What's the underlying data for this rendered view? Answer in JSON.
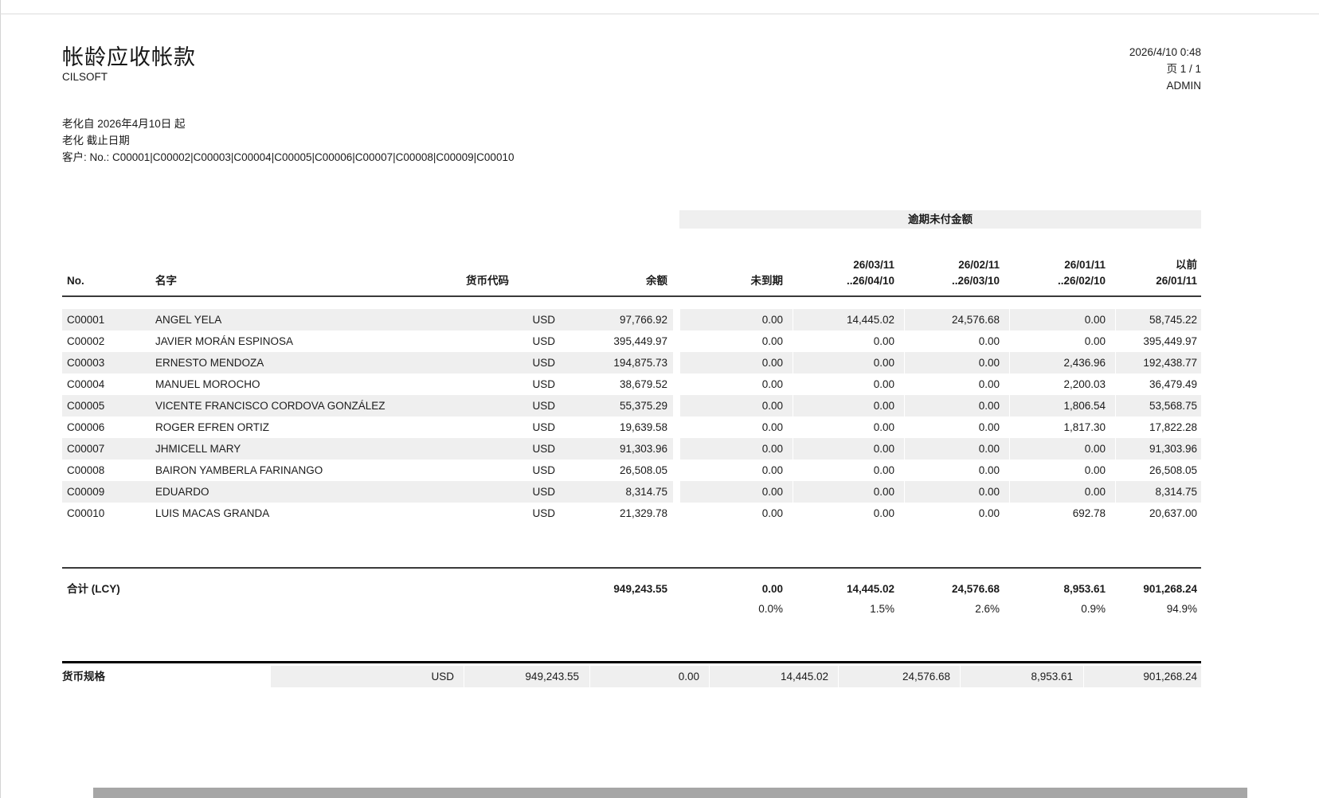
{
  "header": {
    "title": "帐龄应收帐款",
    "company": "CILSOFT",
    "datetime": "2026/4/10 0:48",
    "page_label": "页 1 / 1",
    "user": "ADMIN"
  },
  "filters": {
    "aging_from": "老化自 2026年4月10日 起",
    "aging_basis": "老化 截止日期",
    "customer_filter": "客户: No.: C00001|C00002|C00003|C00004|C00005|C00006|C00007|C00008|C00009|C00010"
  },
  "table": {
    "overdue_band": "逾期未付金额",
    "headers": {
      "no": "No.",
      "name": "名字",
      "currency": "货币代码",
      "balance": "余额",
      "not_due": "未到期",
      "b1_line1": "26/03/11",
      "b1_line2": "..26/04/10",
      "b2_line1": "26/02/11",
      "b2_line2": "..26/03/10",
      "b3_line1": "26/01/11",
      "b3_line2": "..26/02/10",
      "bf_line1": "以前",
      "bf_line2": "26/01/11"
    },
    "rows": [
      {
        "no": "C00001",
        "name": "ANGEL YELA",
        "currency": "USD",
        "balance": "97,766.92",
        "not_due": "0.00",
        "b1": "14,445.02",
        "b2": "24,576.68",
        "b3": "0.00",
        "before": "58,745.22"
      },
      {
        "no": "C00002",
        "name": "JAVIER MORÁN ESPINOSA",
        "currency": "USD",
        "balance": "395,449.97",
        "not_due": "0.00",
        "b1": "0.00",
        "b2": "0.00",
        "b3": "0.00",
        "before": "395,449.97"
      },
      {
        "no": "C00003",
        "name": "ERNESTO MENDOZA",
        "currency": "USD",
        "balance": "194,875.73",
        "not_due": "0.00",
        "b1": "0.00",
        "b2": "0.00",
        "b3": "2,436.96",
        "before": "192,438.77"
      },
      {
        "no": "C00004",
        "name": "MANUEL MOROCHO",
        "currency": "USD",
        "balance": "38,679.52",
        "not_due": "0.00",
        "b1": "0.00",
        "b2": "0.00",
        "b3": "2,200.03",
        "before": "36,479.49"
      },
      {
        "no": "C00005",
        "name": "VICENTE FRANCISCO CORDOVA GONZÁLEZ",
        "currency": "USD",
        "balance": "55,375.29",
        "not_due": "0.00",
        "b1": "0.00",
        "b2": "0.00",
        "b3": "1,806.54",
        "before": "53,568.75"
      },
      {
        "no": "C00006",
        "name": "ROGER EFREN ORTIZ",
        "currency": "USD",
        "balance": "19,639.58",
        "not_due": "0.00",
        "b1": "0.00",
        "b2": "0.00",
        "b3": "1,817.30",
        "before": "17,822.28"
      },
      {
        "no": "C00007",
        "name": "JHMICELL MARY",
        "currency": "USD",
        "balance": "91,303.96",
        "not_due": "0.00",
        "b1": "0.00",
        "b2": "0.00",
        "b3": "0.00",
        "before": "91,303.96"
      },
      {
        "no": "C00008",
        "name": "BAIRON YAMBERLA FARINANGO",
        "currency": "USD",
        "balance": "26,508.05",
        "not_due": "0.00",
        "b1": "0.00",
        "b2": "0.00",
        "b3": "0.00",
        "before": "26,508.05"
      },
      {
        "no": "C00009",
        "name": "EDUARDO",
        "currency": "USD",
        "balance": "8,314.75",
        "not_due": "0.00",
        "b1": "0.00",
        "b2": "0.00",
        "b3": "0.00",
        "before": "8,314.75"
      },
      {
        "no": "C00010",
        "name": "LUIS MACAS GRANDA",
        "currency": "USD",
        "balance": "21,329.78",
        "not_due": "0.00",
        "b1": "0.00",
        "b2": "0.00",
        "b3": "692.78",
        "before": "20,637.00"
      }
    ],
    "totals": {
      "label": "合计 (LCY)",
      "balance": "949,243.55",
      "not_due": "0.00",
      "b1": "14,445.02",
      "b2": "24,576.68",
      "b3": "8,953.61",
      "before": "901,268.24",
      "pct_not_due": "0.0%",
      "pct_b1": "1.5%",
      "pct_b2": "2.6%",
      "pct_b3": "0.9%",
      "pct_before": "94.9%"
    }
  },
  "currency_section": {
    "label": "货币规格",
    "currency": "USD",
    "balance": "949,243.55",
    "not_due": "0.00",
    "b1": "14,445.02",
    "b2": "24,576.68",
    "b3": "8,953.61",
    "before": "901,268.24"
  },
  "colors": {
    "stripe": "#efefef",
    "band": "#efefef",
    "rule_dark": "#3a3a3a",
    "rule_black": "#000000",
    "bottom_strip": "#a6a6a6"
  }
}
